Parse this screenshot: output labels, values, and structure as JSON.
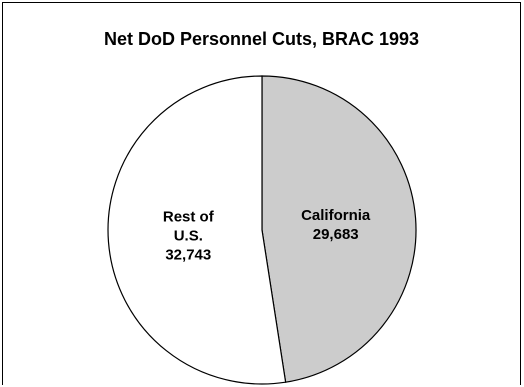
{
  "chart_data": {
    "type": "pie",
    "title": "Net DoD Personnel Cuts, BRAC 1993",
    "slices": [
      {
        "name": "California",
        "label_lines": [
          "California",
          "29,683"
        ],
        "value": 29683,
        "color": "#cccccc"
      },
      {
        "name": "Rest of U.S.",
        "label_lines": [
          "Rest of",
          "U.S.",
          "32,743"
        ],
        "value": 32743,
        "color": "#ffffff"
      }
    ],
    "start_angle_deg": 0,
    "direction": "clockwise",
    "legend": "none"
  }
}
